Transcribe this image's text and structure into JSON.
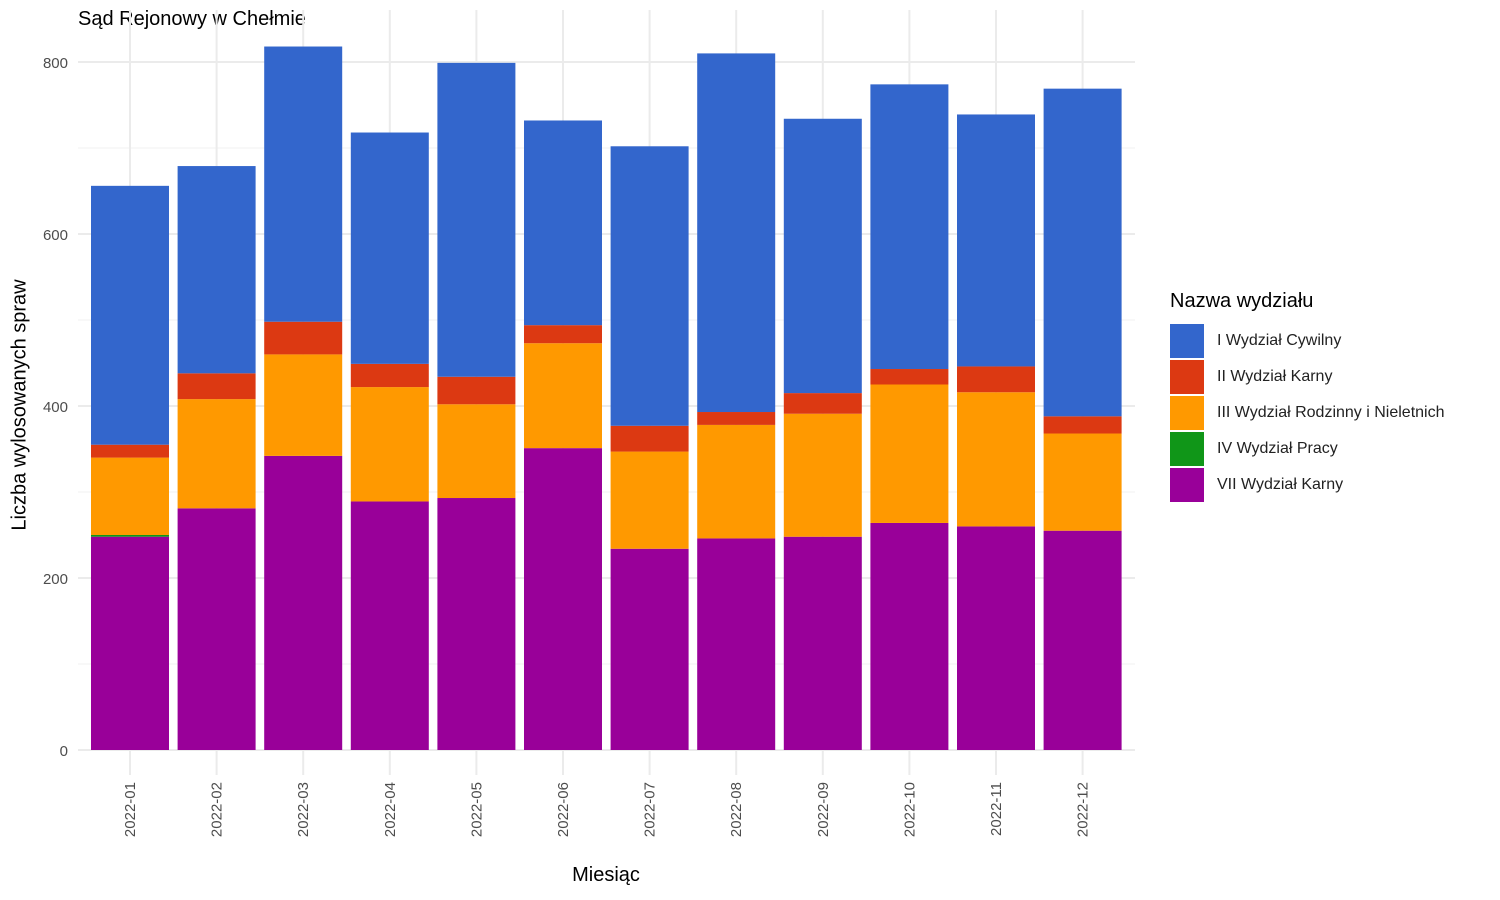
{
  "chart_data": {
    "type": "bar",
    "stacked": true,
    "title": "Sąd Rejonowy w Chełmie",
    "xlabel": "Miesiąc",
    "ylabel": "Liczba wylosowanych spraw",
    "ylim": [
      0,
      850
    ],
    "yticks": [
      0,
      200,
      400,
      600,
      800
    ],
    "grid": true,
    "legend_title": "Nazwa wydziału",
    "legend_position": "right",
    "categories": [
      "2022-01",
      "2022-02",
      "2022-03",
      "2022-04",
      "2022-05",
      "2022-06",
      "2022-07",
      "2022-08",
      "2022-09",
      "2022-10",
      "2022-11",
      "2022-12"
    ],
    "series": [
      {
        "name": "VII Wydział Karny",
        "color": "#990099",
        "values": [
          248,
          281,
          342,
          289,
          293,
          351,
          234,
          246,
          248,
          264,
          260,
          255
        ]
      },
      {
        "name": "IV Wydział Pracy",
        "color": "#109618",
        "values": [
          2,
          0,
          0,
          0,
          0,
          0,
          0,
          0,
          0,
          0,
          0,
          0
        ]
      },
      {
        "name": "III Wydział Rodzinny i Nieletnich",
        "color": "#ff9900",
        "values": [
          90,
          127,
          118,
          133,
          109,
          122,
          113,
          132,
          143,
          161,
          156,
          113
        ]
      },
      {
        "name": "II Wydział Karny",
        "color": "#dc3912",
        "values": [
          15,
          30,
          38,
          27,
          32,
          21,
          30,
          15,
          24,
          18,
          30,
          20
        ]
      },
      {
        "name": "I Wydział Cywilny",
        "color": "#3366cc",
        "values": [
          301,
          241,
          320,
          269,
          365,
          238,
          325,
          417,
          319,
          331,
          293,
          381
        ]
      }
    ],
    "legend_order": [
      "I Wydział Cywilny",
      "II Wydział Karny",
      "III Wydział Rodzinny i Nieletnich",
      "IV Wydział Pracy",
      "VII Wydział Karny"
    ]
  }
}
